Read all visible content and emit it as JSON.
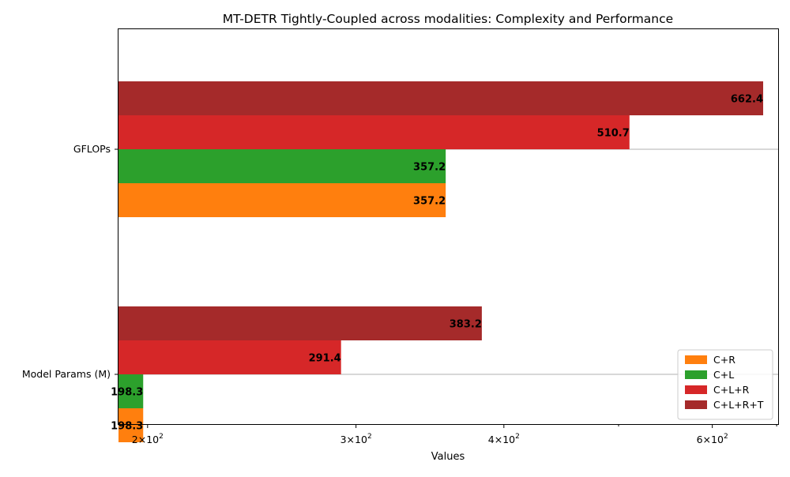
{
  "chart_data": {
    "type": "bar",
    "orientation": "horizontal",
    "title": "MT-DETR Tightly-Coupled across modalities: Complexity and Performance",
    "xlabel": "Values",
    "ylabel": "",
    "x_scale": "log",
    "xlim": [
      189,
      682
    ],
    "x_major_ticks": [
      {
        "value": 200,
        "base": "2",
        "exp": "2"
      },
      {
        "value": 300,
        "base": "3",
        "exp": "2"
      },
      {
        "value": 400,
        "base": "4",
        "exp": "2"
      },
      {
        "value": 600,
        "base": "6",
        "exp": "2"
      }
    ],
    "x_minor_ticks": [
      500
    ],
    "categories": [
      "GFLOPs",
      "Model Params (M)"
    ],
    "grid": "y-major",
    "legend_position": "bottom-right",
    "series": [
      {
        "name": "C+R",
        "color": "#ff7f0e",
        "values": [
          357.2,
          198.3
        ],
        "labels": [
          "357.2",
          "198.3"
        ]
      },
      {
        "name": "C+L",
        "color": "#2ca02c",
        "values": [
          357.2,
          198.3
        ],
        "labels": [
          "357.2",
          "198.3"
        ]
      },
      {
        "name": "C+L+R",
        "color": "#d62728",
        "values": [
          510.7,
          291.4
        ],
        "labels": [
          "510.7",
          "291.4"
        ]
      },
      {
        "name": "C+L+R+T",
        "color": "#a52a2a",
        "values": [
          662.4,
          383.2
        ],
        "labels": [
          "662.4",
          "383.2"
        ]
      }
    ]
  }
}
